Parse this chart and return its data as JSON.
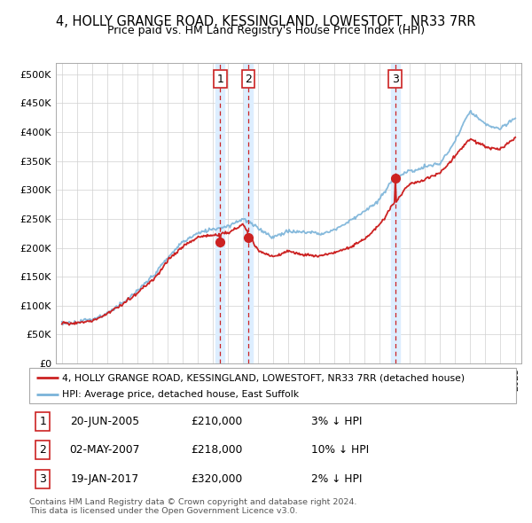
{
  "title": "4, HOLLY GRANGE ROAD, KESSINGLAND, LOWESTOFT, NR33 7RR",
  "subtitle": "Price paid vs. HM Land Registry's House Price Index (HPI)",
  "title_fontsize": 10.5,
  "subtitle_fontsize": 9,
  "ylabel_ticks": [
    "£0",
    "£50K",
    "£100K",
    "£150K",
    "£200K",
    "£250K",
    "£300K",
    "£350K",
    "£400K",
    "£450K",
    "£500K"
  ],
  "ytick_values": [
    0,
    50000,
    100000,
    150000,
    200000,
    250000,
    300000,
    350000,
    400000,
    450000,
    500000
  ],
  "ylim": [
    0,
    520000
  ],
  "xlim_start": 1994.6,
  "xlim_end": 2025.4,
  "hpi_color": "#7ab3d9",
  "price_color": "#cc2222",
  "vline_color": "#cc2222",
  "shade_color": "#ddeeff",
  "transactions": [
    {
      "date": 2005.47,
      "price": 210000,
      "label": "1"
    },
    {
      "date": 2007.33,
      "price": 218000,
      "label": "2"
    },
    {
      "date": 2017.05,
      "price": 320000,
      "label": "3"
    }
  ],
  "legend_entry1": "4, HOLLY GRANGE ROAD, KESSINGLAND, LOWESTOFT, NR33 7RR (detached house)",
  "legend_entry2": "HPI: Average price, detached house, East Suffolk",
  "footer1": "Contains HM Land Registry data © Crown copyright and database right 2024.",
  "footer2": "This data is licensed under the Open Government Licence v3.0.",
  "table_rows": [
    {
      "num": "1",
      "date": "20-JUN-2005",
      "price": "£210,000",
      "hpi": "3% ↓ HPI"
    },
    {
      "num": "2",
      "date": "02-MAY-2007",
      "price": "£218,000",
      "hpi": "10% ↓ HPI"
    },
    {
      "num": "3",
      "date": "19-JAN-2017",
      "price": "£320,000",
      "hpi": "2% ↓ HPI"
    }
  ],
  "hpi_years": [
    1995,
    1996,
    1997,
    1998,
    1999,
    2000,
    2001,
    2002,
    2003,
    2004,
    2005,
    2006,
    2007,
    2008,
    2009,
    2010,
    2011,
    2012,
    2013,
    2014,
    2015,
    2016,
    2017,
    2018,
    2019,
    2020,
    2021,
    2022,
    2023,
    2024,
    2025
  ],
  "hpi_vals": [
    70000,
    72000,
    78000,
    88000,
    105000,
    125000,
    148000,
    178000,
    205000,
    225000,
    230000,
    235000,
    248000,
    232000,
    215000,
    225000,
    222000,
    220000,
    225000,
    240000,
    258000,
    278000,
    318000,
    330000,
    338000,
    342000,
    385000,
    435000,
    415000,
    405000,
    425000
  ],
  "price_vals": [
    70000,
    71000,
    76000,
    87000,
    103000,
    122000,
    145000,
    175000,
    200000,
    218000,
    222000,
    228000,
    243000,
    195000,
    185000,
    195000,
    188000,
    185000,
    190000,
    200000,
    215000,
    240000,
    278000,
    310000,
    320000,
    330000,
    360000,
    390000,
    375000,
    370000,
    390000
  ]
}
